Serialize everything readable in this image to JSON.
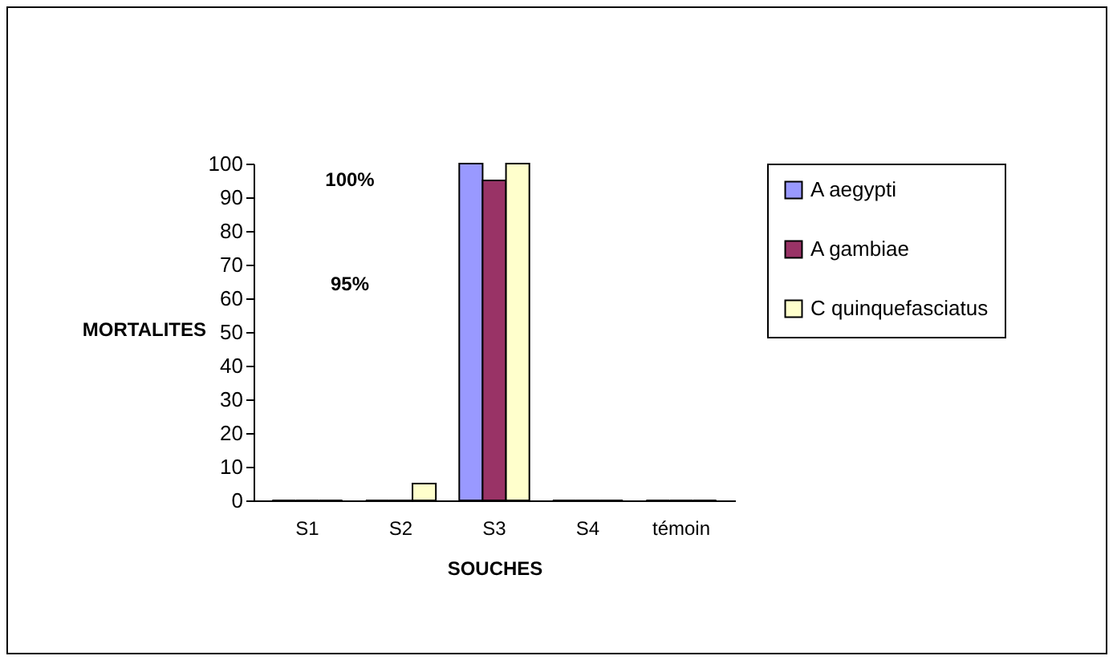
{
  "chart_data": {
    "type": "bar",
    "xlabel": "SOUCHES",
    "ylabel": "MORTALITES",
    "categories": [
      "S1",
      "S2",
      "S3",
      "S4",
      "témoin"
    ],
    "series": [
      {
        "name": "A aegypti",
        "color": "#9999ff",
        "values": [
          0,
          0,
          100,
          0,
          0
        ]
      },
      {
        "name": "A gambiae",
        "color": "#993366",
        "values": [
          0,
          0,
          95,
          0,
          0
        ]
      },
      {
        "name": "C quinquefasciatus",
        "color": "#ffffcc",
        "values": [
          0,
          5,
          100,
          0,
          0
        ]
      }
    ],
    "ylim": [
      0,
      100
    ],
    "yticks": [
      0,
      10,
      20,
      30,
      40,
      50,
      60,
      70,
      80,
      90,
      100
    ],
    "grid": false,
    "legend": "right",
    "annotations": [
      "100%",
      "95%"
    ]
  }
}
